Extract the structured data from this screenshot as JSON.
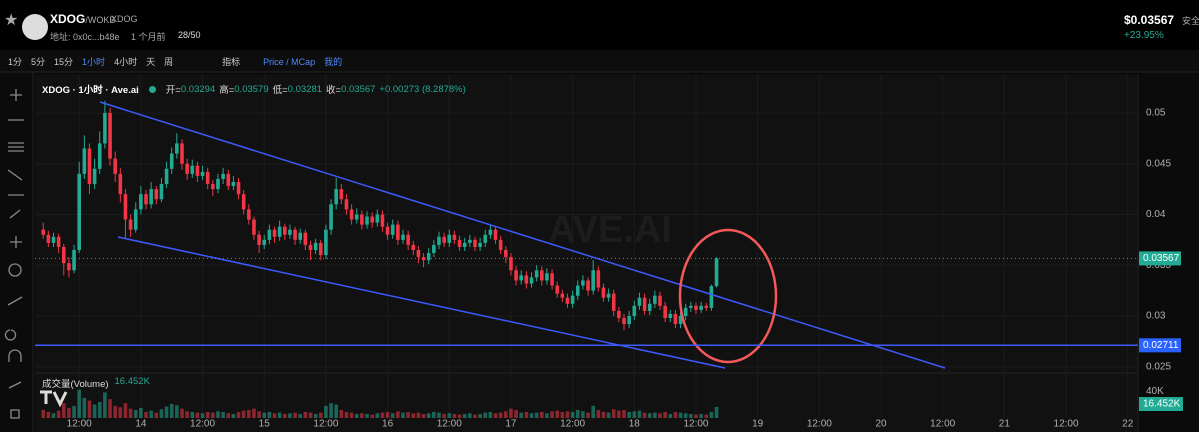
{
  "header": {
    "symbol": "XDOG",
    "pair": "/WOKB",
    "tag": "XDOG",
    "address": "地址: 0x0c...b48e",
    "age": "1 个月前",
    "score": "28/50",
    "price": "$0.03567",
    "change": "+23.95%",
    "safety": "安全"
  },
  "toolbar": {
    "intervals": [
      "1分",
      "5分",
      "15分",
      "1小时",
      "4小时",
      "天",
      "周"
    ],
    "indicators": "指标",
    "price_mcap": "Price / MCap",
    "mine": "我的"
  },
  "chart_data": {
    "type": "candlestick",
    "title": "XDOG · 1小时 · Ave.ai",
    "watermark": "AVE.AI",
    "legend": {
      "open": "开=",
      "high": "高=",
      "low": "低=",
      "close": "收=",
      "change": "+0.00273 (8.2878%)"
    },
    "up_color": "#22ab94",
    "down_color": "#f23645",
    "grid": true,
    "xlim": [
      3.4,
      218
    ],
    "ylim": [
      0.02448,
      0.05374
    ],
    "yticks": [
      0.025,
      0.03,
      0.035,
      0.04,
      0.045,
      0.05
    ],
    "xticks": [
      {
        "value": 12,
        "label": "12:00"
      },
      {
        "value": 24,
        "label": "14"
      },
      {
        "value": 36,
        "label": "12:00"
      },
      {
        "value": 48,
        "label": "15"
      },
      {
        "value": 60,
        "label": "12:00"
      },
      {
        "value": 72,
        "label": "16"
      },
      {
        "value": 84,
        "label": "12:00"
      },
      {
        "value": 96,
        "label": "17"
      },
      {
        "value": 108,
        "label": "12:00"
      },
      {
        "value": 120,
        "label": "18"
      },
      {
        "value": 132,
        "label": "12:00"
      },
      {
        "value": 144,
        "label": "19"
      },
      {
        "value": 156,
        "label": "12:00"
      },
      {
        "value": 168,
        "label": "20"
      },
      {
        "value": 180,
        "label": "12:00"
      },
      {
        "value": 192,
        "label": "21"
      },
      {
        "value": 204,
        "label": "12:00"
      },
      {
        "value": 216,
        "label": "22"
      }
    ],
    "hline": 0.02711,
    "x": [
      5,
      6,
      7,
      8,
      9,
      10,
      11,
      12,
      13,
      14,
      15,
      16,
      17,
      18,
      19,
      20,
      21,
      22,
      23,
      24,
      25,
      26,
      27,
      28,
      29,
      30,
      31,
      32,
      33,
      34,
      35,
      36,
      37,
      38,
      39,
      40,
      41,
      42,
      43,
      44,
      45,
      46,
      47,
      48,
      49,
      50,
      51,
      52,
      53,
      54,
      55,
      56,
      57,
      58,
      59,
      60,
      61,
      62,
      63,
      64,
      65,
      66,
      67,
      68,
      69,
      70,
      71,
      72,
      73,
      74,
      75,
      76,
      77,
      78,
      79,
      80,
      81,
      82,
      83,
      84,
      85,
      86,
      87,
      88,
      89,
      90,
      91,
      92,
      93,
      94,
      95,
      96,
      97,
      98,
      99,
      100,
      101,
      102,
      103,
      104,
      105,
      106,
      107,
      108,
      109,
      110,
      111,
      112,
      113,
      114,
      115,
      116,
      117,
      118,
      119,
      120,
      121,
      122,
      123,
      124,
      125,
      126,
      127,
      128,
      129,
      130,
      131,
      132,
      133,
      134,
      135,
      136
    ],
    "ohlc": [
      [
        0.0385,
        0.0392,
        0.0376,
        0.038
      ],
      [
        0.038,
        0.0384,
        0.0368,
        0.0372
      ],
      [
        0.0372,
        0.0382,
        0.0368,
        0.0378
      ],
      [
        0.0378,
        0.0381,
        0.0362,
        0.0368
      ],
      [
        0.0368,
        0.0371,
        0.034,
        0.0352
      ],
      [
        0.0352,
        0.0358,
        0.0338,
        0.0345
      ],
      [
        0.0345,
        0.037,
        0.0342,
        0.0365
      ],
      [
        0.0365,
        0.0452,
        0.0362,
        0.044
      ],
      [
        0.044,
        0.0478,
        0.0435,
        0.0465
      ],
      [
        0.0465,
        0.047,
        0.042,
        0.043
      ],
      [
        0.043,
        0.0455,
        0.0425,
        0.0445
      ],
      [
        0.0445,
        0.0482,
        0.044,
        0.047
      ],
      [
        0.047,
        0.0512,
        0.0465,
        0.05
      ],
      [
        0.05,
        0.0505,
        0.0448,
        0.0455
      ],
      [
        0.0455,
        0.0462,
        0.0432,
        0.044
      ],
      [
        0.044,
        0.0446,
        0.0412,
        0.042
      ],
      [
        0.042,
        0.0425,
        0.0376,
        0.0395
      ],
      [
        0.0395,
        0.04,
        0.0378,
        0.0385
      ],
      [
        0.0385,
        0.0412,
        0.0382,
        0.0405
      ],
      [
        0.0405,
        0.0428,
        0.04,
        0.042
      ],
      [
        0.042,
        0.0424,
        0.0405,
        0.041
      ],
      [
        0.041,
        0.0432,
        0.0406,
        0.0425
      ],
      [
        0.0425,
        0.0428,
        0.041,
        0.0415
      ],
      [
        0.0415,
        0.0436,
        0.0412,
        0.043
      ],
      [
        0.043,
        0.0452,
        0.0426,
        0.0445
      ],
      [
        0.0445,
        0.0466,
        0.044,
        0.046
      ],
      [
        0.046,
        0.048,
        0.0455,
        0.047
      ],
      [
        0.047,
        0.0474,
        0.0444,
        0.045
      ],
      [
        0.045,
        0.0455,
        0.0434,
        0.044
      ],
      [
        0.044,
        0.0454,
        0.0436,
        0.0448
      ],
      [
        0.0448,
        0.0452,
        0.0432,
        0.0438
      ],
      [
        0.0438,
        0.0448,
        0.0434,
        0.0442
      ],
      [
        0.0442,
        0.0446,
        0.0425,
        0.043
      ],
      [
        0.043,
        0.0434,
        0.0418,
        0.0425
      ],
      [
        0.0425,
        0.044,
        0.0421,
        0.0435
      ],
      [
        0.0435,
        0.0446,
        0.043,
        0.044
      ],
      [
        0.044,
        0.0444,
        0.0424,
        0.0428
      ],
      [
        0.0428,
        0.0438,
        0.0424,
        0.0432
      ],
      [
        0.0432,
        0.0436,
        0.0415,
        0.042
      ],
      [
        0.042,
        0.0424,
        0.04,
        0.0405
      ],
      [
        0.0405,
        0.041,
        0.039,
        0.0395
      ],
      [
        0.0395,
        0.0398,
        0.0375,
        0.038
      ],
      [
        0.038,
        0.0384,
        0.0362,
        0.037
      ],
      [
        0.037,
        0.038,
        0.0366,
        0.0375
      ],
      [
        0.0375,
        0.039,
        0.0371,
        0.0385
      ],
      [
        0.0385,
        0.0388,
        0.0372,
        0.0378
      ],
      [
        0.0378,
        0.0394,
        0.0374,
        0.0388
      ],
      [
        0.0388,
        0.0391,
        0.0375,
        0.038
      ],
      [
        0.038,
        0.039,
        0.0376,
        0.0385
      ],
      [
        0.0385,
        0.0388,
        0.037,
        0.0375
      ],
      [
        0.0375,
        0.0386,
        0.0371,
        0.0382
      ],
      [
        0.0382,
        0.0385,
        0.0365,
        0.037
      ],
      [
        0.037,
        0.0374,
        0.0355,
        0.0365
      ],
      [
        0.0365,
        0.0376,
        0.0361,
        0.0372
      ],
      [
        0.0372,
        0.0375,
        0.0355,
        0.036
      ],
      [
        0.036,
        0.039,
        0.0356,
        0.0385
      ],
      [
        0.0385,
        0.0415,
        0.038,
        0.041
      ],
      [
        0.041,
        0.0436,
        0.0405,
        0.0425
      ],
      [
        0.0425,
        0.043,
        0.041,
        0.0415
      ],
      [
        0.0415,
        0.042,
        0.04,
        0.0405
      ],
      [
        0.0405,
        0.041,
        0.039,
        0.0395
      ],
      [
        0.0395,
        0.0406,
        0.0391,
        0.04
      ],
      [
        0.04,
        0.0404,
        0.0385,
        0.039
      ],
      [
        0.039,
        0.0403,
        0.0386,
        0.0398
      ],
      [
        0.0398,
        0.0402,
        0.0387,
        0.0392
      ],
      [
        0.0392,
        0.0405,
        0.0388,
        0.04
      ],
      [
        0.04,
        0.0404,
        0.0383,
        0.0388
      ],
      [
        0.0388,
        0.0392,
        0.0375,
        0.038
      ],
      [
        0.038,
        0.0395,
        0.0376,
        0.039
      ],
      [
        0.039,
        0.0394,
        0.037,
        0.0375
      ],
      [
        0.0375,
        0.0385,
        0.0371,
        0.038
      ],
      [
        0.038,
        0.0384,
        0.0365,
        0.037
      ],
      [
        0.037,
        0.0374,
        0.036,
        0.0365
      ],
      [
        0.0365,
        0.0369,
        0.0352,
        0.0358
      ],
      [
        0.0358,
        0.0362,
        0.0348,
        0.0355
      ],
      [
        0.0355,
        0.0367,
        0.0351,
        0.0362
      ],
      [
        0.0362,
        0.0375,
        0.0358,
        0.037
      ],
      [
        0.037,
        0.0383,
        0.0366,
        0.0378
      ],
      [
        0.0378,
        0.0382,
        0.0368,
        0.0372
      ],
      [
        0.0372,
        0.0385,
        0.0368,
        0.038
      ],
      [
        0.038,
        0.0384,
        0.0371,
        0.0375
      ],
      [
        0.0375,
        0.0379,
        0.0364,
        0.0368
      ],
      [
        0.0368,
        0.0377,
        0.0364,
        0.0372
      ],
      [
        0.0372,
        0.038,
        0.0368,
        0.0375
      ],
      [
        0.0375,
        0.0378,
        0.0364,
        0.0368
      ],
      [
        0.0368,
        0.0377,
        0.0364,
        0.0372
      ],
      [
        0.0372,
        0.0385,
        0.0368,
        0.038
      ],
      [
        0.038,
        0.039,
        0.0376,
        0.0385
      ],
      [
        0.0385,
        0.0388,
        0.0371,
        0.0375
      ],
      [
        0.0375,
        0.0379,
        0.0361,
        0.0365
      ],
      [
        0.0365,
        0.0369,
        0.0352,
        0.0358
      ],
      [
        0.0358,
        0.0362,
        0.034,
        0.0345
      ],
      [
        0.0345,
        0.0349,
        0.033,
        0.0335
      ],
      [
        0.0335,
        0.0345,
        0.0331,
        0.034
      ],
      [
        0.034,
        0.0344,
        0.0327,
        0.0332
      ],
      [
        0.0332,
        0.0343,
        0.0328,
        0.0338
      ],
      [
        0.0338,
        0.035,
        0.0334,
        0.0345
      ],
      [
        0.0345,
        0.0349,
        0.033,
        0.0335
      ],
      [
        0.0335,
        0.0347,
        0.0331,
        0.0342
      ],
      [
        0.0342,
        0.0346,
        0.0326,
        0.033
      ],
      [
        0.033,
        0.0334,
        0.0318,
        0.0322
      ],
      [
        0.0322,
        0.0326,
        0.0314,
        0.0318
      ],
      [
        0.0318,
        0.0322,
        0.0308,
        0.0312
      ],
      [
        0.0312,
        0.0325,
        0.0308,
        0.032
      ],
      [
        0.032,
        0.0335,
        0.0316,
        0.033
      ],
      [
        0.033,
        0.034,
        0.0326,
        0.0335
      ],
      [
        0.0335,
        0.0338,
        0.032,
        0.0325
      ],
      [
        0.0325,
        0.0355,
        0.0321,
        0.0345
      ],
      [
        0.0345,
        0.0349,
        0.0324,
        0.0328
      ],
      [
        0.0328,
        0.0332,
        0.0314,
        0.0318
      ],
      [
        0.0318,
        0.0327,
        0.0314,
        0.0322
      ],
      [
        0.0322,
        0.0326,
        0.03,
        0.0305
      ],
      [
        0.0305,
        0.0309,
        0.0294,
        0.0298
      ],
      [
        0.0298,
        0.0302,
        0.0286,
        0.0292
      ],
      [
        0.0292,
        0.0305,
        0.0288,
        0.03
      ],
      [
        0.03,
        0.0315,
        0.0296,
        0.031
      ],
      [
        0.031,
        0.0323,
        0.0306,
        0.0318
      ],
      [
        0.0318,
        0.0322,
        0.0301,
        0.0305
      ],
      [
        0.0305,
        0.0317,
        0.0301,
        0.0312
      ],
      [
        0.0312,
        0.0325,
        0.0308,
        0.032
      ],
      [
        0.032,
        0.0324,
        0.0306,
        0.031
      ],
      [
        0.031,
        0.0314,
        0.0294,
        0.0298
      ],
      [
        0.0298,
        0.0306,
        0.0294,
        0.0302
      ],
      [
        0.0302,
        0.0306,
        0.0288,
        0.0292
      ],
      [
        0.0292,
        0.0304,
        0.0288,
        0.03
      ],
      [
        0.03,
        0.0312,
        0.0296,
        0.0308
      ],
      [
        0.0308,
        0.0314,
        0.0304,
        0.031
      ],
      [
        0.031,
        0.0313,
        0.0302,
        0.0306
      ],
      [
        0.0306,
        0.0314,
        0.0303,
        0.031
      ],
      [
        0.031,
        0.0313,
        0.0305,
        0.0308
      ],
      [
        0.0308,
        0.0331,
        0.0305,
        0.03294
      ],
      [
        0.03294,
        0.03579,
        0.03281,
        0.03567
      ]
    ],
    "volume": {
      "title": "成交量(Volume)",
      "ylim": [
        0,
        64000
      ],
      "yticks": [
        {
          "value": 40000,
          "label": "40K"
        }
      ],
      "value_label": "16.452K",
      "values": [
        12000,
        9000,
        7000,
        11000,
        22000,
        15000,
        18000,
        42000,
        30000,
        26000,
        20000,
        24000,
        38000,
        28000,
        18000,
        16000,
        22000,
        14000,
        12000,
        15000,
        9000,
        11000,
        8000,
        13000,
        17000,
        21000,
        19000,
        14000,
        10000,
        9000,
        8000,
        7000,
        9000,
        8000,
        10000,
        9000,
        7000,
        6000,
        9000,
        11000,
        12000,
        14000,
        10000,
        8000,
        9000,
        7000,
        8000,
        6000,
        7000,
        8000,
        6000,
        9000,
        8000,
        6000,
        8000,
        18000,
        22000,
        20000,
        12000,
        9000,
        8000,
        6000,
        7000,
        6000,
        5000,
        7000,
        8000,
        9000,
        7000,
        10000,
        8000,
        9000,
        7000,
        8000,
        6000,
        7000,
        9000,
        8000,
        6000,
        7000,
        6000,
        5000,
        6000,
        7000,
        5000,
        6000,
        8000,
        9000,
        7000,
        8000,
        10000,
        14000,
        12000,
        8000,
        9000,
        7000,
        8000,
        9000,
        7000,
        10000,
        11000,
        9000,
        10000,
        9000,
        12000,
        10000,
        8000,
        18000,
        12000,
        9000,
        8000,
        13000,
        11000,
        12000,
        9000,
        10000,
        11000,
        8000,
        7000,
        8000,
        7000,
        9000,
        6000,
        9000,
        8000,
        7000,
        6000,
        5000,
        6000,
        5000,
        9000,
        16452
      ]
    }
  }
}
